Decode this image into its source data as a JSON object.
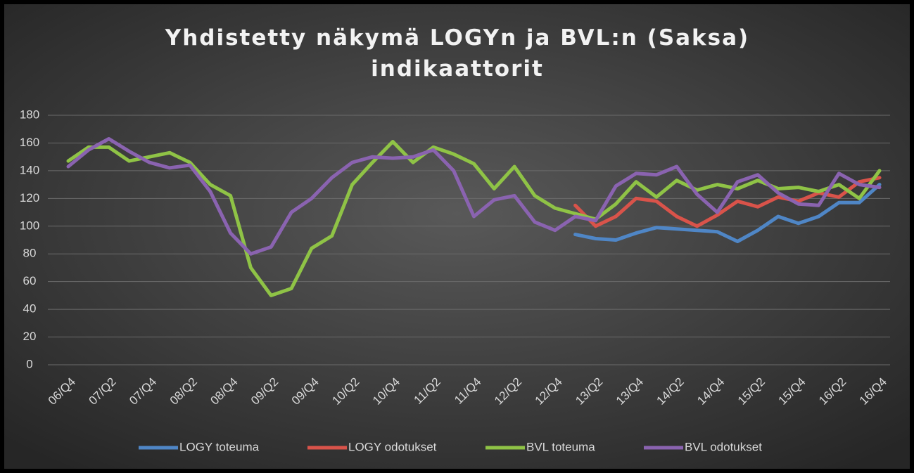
{
  "chart_data": {
    "type": "line",
    "title": "Yhdistetty näkymä LOGYn ja BVL:n (Saksa) indikaattorit",
    "categories": [
      "06/Q4",
      null,
      "07/Q2",
      null,
      "07/Q4",
      null,
      "08/Q2",
      null,
      "08/Q4",
      null,
      "09/Q2",
      null,
      "09/Q4",
      null,
      "10/Q2",
      null,
      "10/Q4",
      null,
      "11/Q2",
      null,
      "11/Q4",
      null,
      "12/Q2",
      null,
      "12/Q4",
      null,
      "13/Q2",
      null,
      "13/Q4",
      null,
      "14/Q2",
      null,
      "14/Q4",
      null,
      "15/Q2",
      null,
      "15/Q4",
      null,
      "16/Q2",
      null,
      "16/Q4"
    ],
    "series": [
      {
        "name": "LOGY toteuma",
        "color": "#4f86c6",
        "values": [
          null,
          null,
          null,
          null,
          null,
          null,
          null,
          null,
          null,
          null,
          null,
          null,
          null,
          null,
          null,
          null,
          null,
          null,
          null,
          null,
          null,
          null,
          null,
          null,
          null,
          94,
          91,
          90,
          95,
          99,
          98,
          97,
          96,
          89,
          97,
          107,
          102,
          107,
          117,
          117,
          130
        ]
      },
      {
        "name": "LOGY odotukset",
        "color": "#d9534a",
        "values": [
          null,
          null,
          null,
          null,
          null,
          null,
          null,
          null,
          null,
          null,
          null,
          null,
          null,
          null,
          null,
          null,
          null,
          null,
          null,
          null,
          null,
          null,
          null,
          null,
          null,
          115,
          100,
          107,
          120,
          118,
          107,
          100,
          108,
          118,
          114,
          121,
          118,
          124,
          121,
          132,
          135
        ]
      },
      {
        "name": "BVL toteuma",
        "color": "#8fc346",
        "values": [
          147,
          157,
          157,
          147,
          150,
          153,
          146,
          130,
          122,
          70,
          50,
          55,
          84,
          93,
          130,
          146,
          161,
          146,
          157,
          152,
          145,
          127,
          143,
          122,
          113,
          109,
          105,
          116,
          132,
          121,
          133,
          126,
          130,
          127,
          133,
          127,
          128,
          125,
          130,
          120,
          140
        ]
      },
      {
        "name": "BVL odotukset",
        "color": "#8a63b0",
        "values": [
          143,
          155,
          163,
          154,
          146,
          142,
          144,
          125,
          95,
          80,
          85,
          110,
          120,
          135,
          146,
          150,
          149,
          150,
          155,
          140,
          107,
          119,
          122,
          103,
          97,
          107,
          104,
          129,
          138,
          137,
          143,
          123,
          110,
          132,
          137,
          124,
          116,
          115,
          138,
          130,
          128
        ]
      }
    ],
    "ylim": [
      0,
      180
    ],
    "yticks": [
      0,
      20,
      40,
      60,
      80,
      100,
      120,
      140,
      160,
      180
    ],
    "grid": true,
    "legend": "bottom"
  }
}
